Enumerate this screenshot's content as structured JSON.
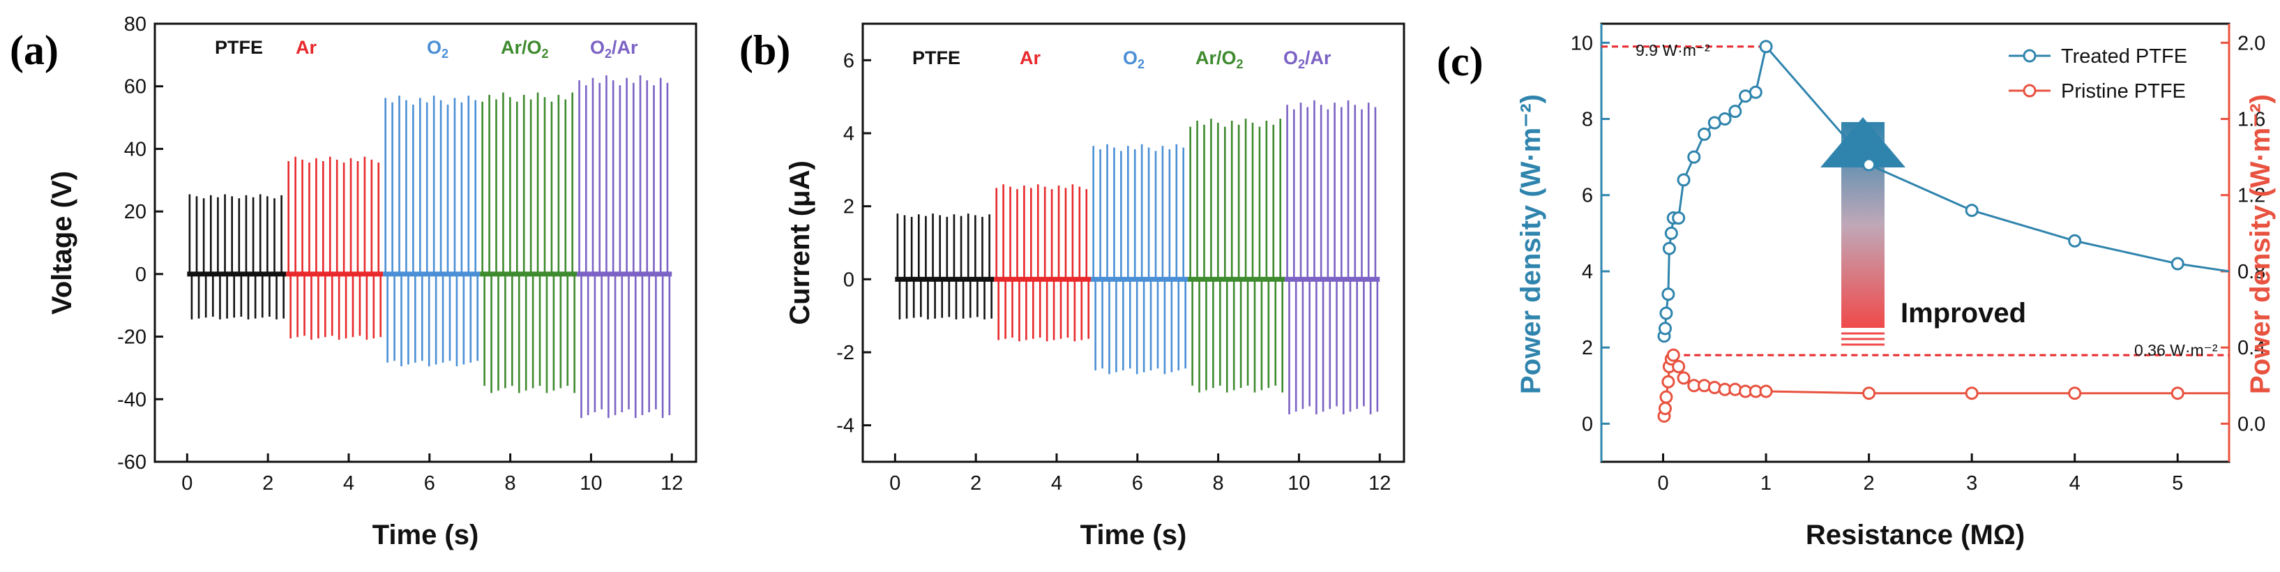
{
  "colors": {
    "PTFE": "#111111",
    "Ar": "#e8282b",
    "O2": "#4a8fd6",
    "ArO2": "#3e8a2e",
    "O2Ar": "#7b62c4",
    "treated": "#2f84ad",
    "pristine": "#e8523f",
    "arrow_top": "#2f84ad",
    "arrow_bottom": "#f04a4a"
  },
  "chart_data": [
    {
      "panel": "(a)",
      "type": "line",
      "title": "",
      "xlabel": "Time (s)",
      "ylabel": "Voltage (V)",
      "xlim": [
        -0.8,
        12.6
      ],
      "ylim": [
        -60,
        80
      ],
      "xticks": [
        "0",
        "2",
        "4",
        "6",
        "8",
        "10",
        "12"
      ],
      "yticks": [
        "-60",
        "-40",
        "-20",
        "0",
        "20",
        "40",
        "60",
        "80"
      ],
      "series": [
        {
          "name": "PTFE",
          "color_key": "PTFE",
          "t_start": 0.0,
          "t_end": 2.45,
          "n_pulses": 14,
          "pos_peak": 25.5,
          "neg_peak": -14.5
        },
        {
          "name": "Ar",
          "color_key": "Ar",
          "t_start": 2.45,
          "t_end": 4.85,
          "n_pulses": 14,
          "pos_peak": 37.5,
          "neg_peak": -21
        },
        {
          "name": "O2",
          "color_key": "O2",
          "t_start": 4.85,
          "t_end": 7.25,
          "n_pulses": 14,
          "pos_peak": 57,
          "neg_peak": -29.5
        },
        {
          "name": "Ar/O2",
          "color_key": "ArO2",
          "t_start": 7.25,
          "t_end": 9.65,
          "n_pulses": 14,
          "pos_peak": 58,
          "neg_peak": -38
        },
        {
          "name": "O2/Ar",
          "color_key": "O2Ar",
          "t_start": 9.65,
          "t_end": 12.0,
          "n_pulses": 14,
          "pos_peak": 63.5,
          "neg_peak": -46
        }
      ]
    },
    {
      "panel": "(b)",
      "type": "line",
      "title": "",
      "xlabel": "Time (s)",
      "ylabel": "Current (μA)",
      "xlim": [
        -0.8,
        12.6
      ],
      "ylim": [
        -5,
        7
      ],
      "xticks": [
        "0",
        "2",
        "4",
        "6",
        "8",
        "10",
        "12"
      ],
      "yticks": [
        "-4",
        "-2",
        "0",
        "2",
        "4",
        "6"
      ],
      "series": [
        {
          "name": "PTFE",
          "color_key": "PTFE",
          "t_start": 0.0,
          "t_end": 2.45,
          "n_pulses": 14,
          "pos_peak": 1.8,
          "neg_peak": -1.1
        },
        {
          "name": "Ar",
          "color_key": "Ar",
          "t_start": 2.45,
          "t_end": 4.85,
          "n_pulses": 14,
          "pos_peak": 2.6,
          "neg_peak": -1.7
        },
        {
          "name": "O2",
          "color_key": "O2",
          "t_start": 4.85,
          "t_end": 7.25,
          "n_pulses": 14,
          "pos_peak": 3.7,
          "neg_peak": -2.6
        },
        {
          "name": "Ar/O2",
          "color_key": "ArO2",
          "t_start": 7.25,
          "t_end": 9.65,
          "n_pulses": 14,
          "pos_peak": 4.4,
          "neg_peak": -3.1
        },
        {
          "name": "O2/Ar",
          "color_key": "O2Ar",
          "t_start": 9.65,
          "t_end": 12.0,
          "n_pulses": 14,
          "pos_peak": 4.9,
          "neg_peak": -3.7
        }
      ]
    },
    {
      "panel": "(c)",
      "type": "line",
      "title": "",
      "xlabel": "Resistance (MΩ)",
      "ylabel_left": "Power density (W·m⁻²)",
      "ylabel_right": "Power density (W·m⁻²)",
      "xlim": [
        -0.6,
        5.5
      ],
      "ylim_left": [
        -1,
        10.5
      ],
      "ylim_right": [
        -0.2,
        2.1
      ],
      "xticks": [
        "0",
        "1",
        "2",
        "3",
        "4",
        "5"
      ],
      "yticks_left": [
        "0",
        "2",
        "4",
        "6",
        "8",
        "10"
      ],
      "yticks_right": [
        "0.0",
        "0.4",
        "0.8",
        "1.2",
        "1.6",
        "2.0"
      ],
      "legend": [
        "Treated PTFE",
        "Pristine PTFE"
      ],
      "legend_position": "top-right",
      "series": [
        {
          "name": "Treated PTFE",
          "axis": "left",
          "color_key": "treated",
          "x": [
            0.01,
            0.02,
            0.03,
            0.05,
            0.06,
            0.08,
            0.1,
            0.15,
            0.2,
            0.3,
            0.4,
            0.5,
            0.6,
            0.7,
            0.8,
            0.9,
            1.0,
            2.0,
            3.0,
            4.0,
            5.0,
            5.5
          ],
          "y": [
            2.3,
            2.5,
            2.9,
            3.4,
            4.6,
            5.0,
            5.4,
            5.4,
            6.4,
            7.0,
            7.6,
            7.9,
            8.0,
            8.2,
            8.6,
            8.7,
            9.9,
            6.8,
            5.6,
            4.8,
            4.2,
            4.0
          ]
        },
        {
          "name": "Pristine PTFE",
          "axis": "right",
          "color_key": "pristine",
          "x": [
            0.01,
            0.02,
            0.03,
            0.05,
            0.06,
            0.08,
            0.1,
            0.15,
            0.2,
            0.3,
            0.4,
            0.5,
            0.6,
            0.7,
            0.8,
            0.9,
            1.0,
            2.0,
            3.0,
            4.0,
            5.0,
            5.5
          ],
          "y": [
            0.04,
            0.08,
            0.14,
            0.22,
            0.3,
            0.34,
            0.36,
            0.3,
            0.24,
            0.2,
            0.2,
            0.19,
            0.18,
            0.18,
            0.17,
            0.17,
            0.17,
            0.16,
            0.16,
            0.16,
            0.16,
            0.16
          ]
        }
      ],
      "annotations": {
        "peak_treated": "9.9 W·m⁻²",
        "peak_pristine": "0.36 W·m⁻²",
        "improved": "Improved"
      }
    }
  ]
}
